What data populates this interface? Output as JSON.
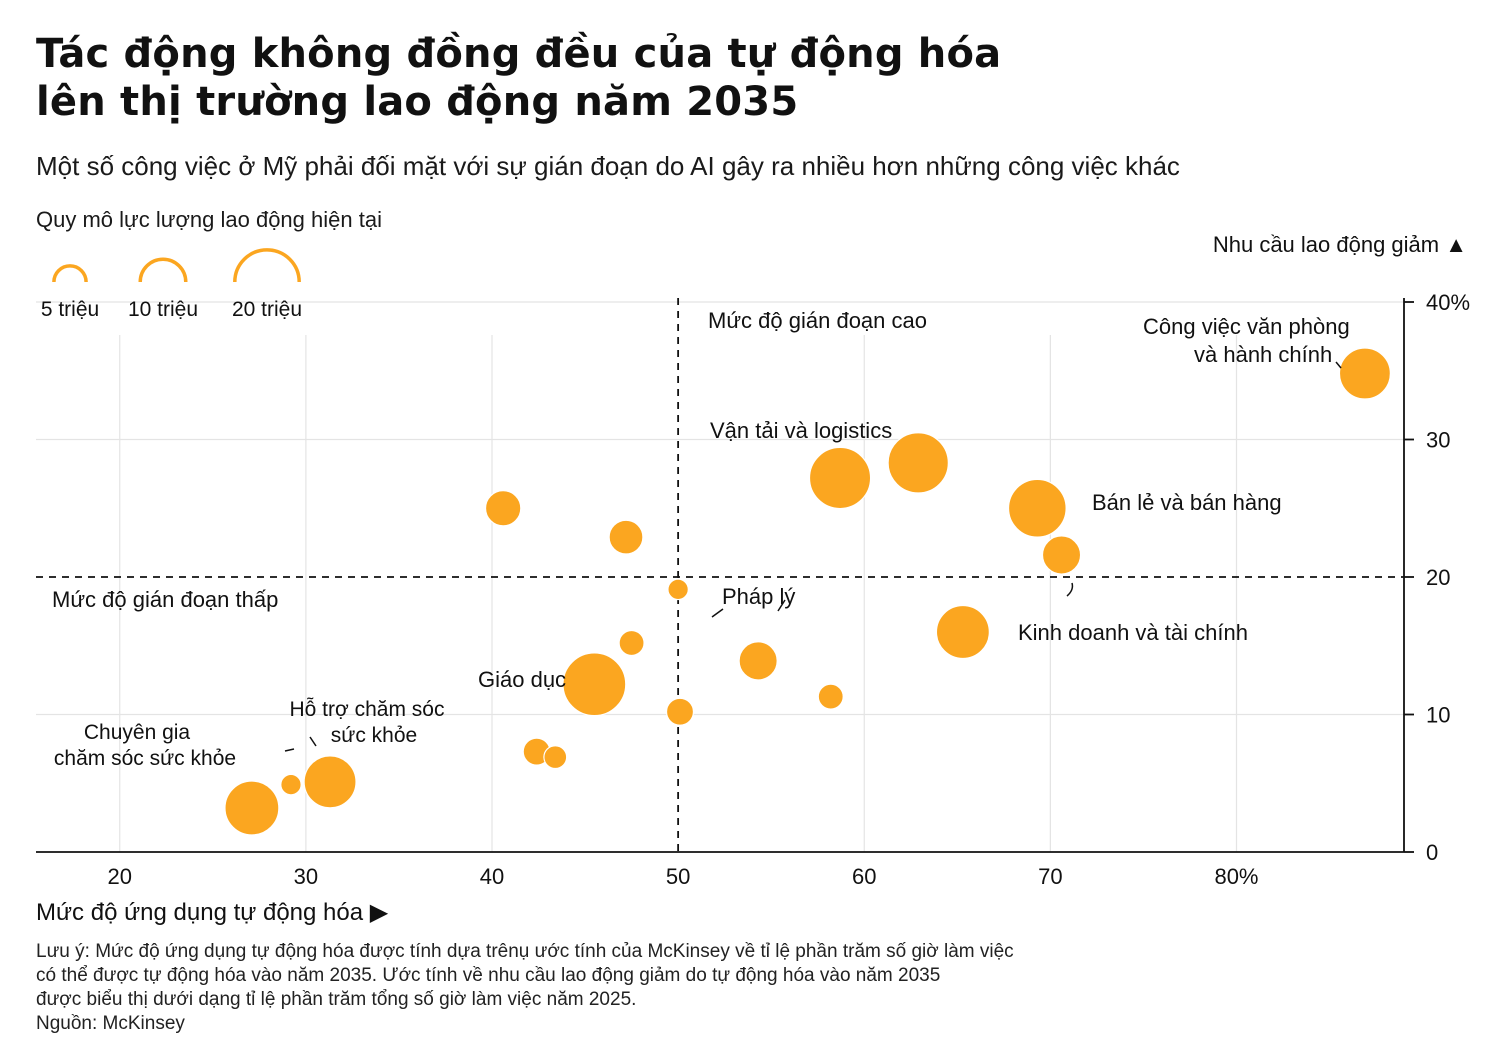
{
  "title_line1": "Tác động không đồng đều của tự động hóa",
  "title_line2": "lên thị trường lao động năm 2035",
  "subtitle": "Một số công việc ở Mỹ phải đối mặt với sự gián đoạn do AI gây ra nhiều hơn những công việc khác",
  "legend": {
    "title": "Quy mô lực lượng lao động hiện tại",
    "items": [
      {
        "label": "5 triệu",
        "value": 5
      },
      {
        "label": "10 triệu",
        "value": 10
      },
      {
        "label": "20 triệu",
        "value": 20
      }
    ]
  },
  "footnote": {
    "line1": "Lưu ý: Mức độ ứng dụng tự động hóa được tính dựa trênụ ước tính của McKinsey về tỉ lệ phần trăm số giờ làm việc",
    "line2": "có thể được tự động hóa vào năm 2035. Ước tính về nhu cầu lao động giảm do tự động hóa vào năm 2035",
    "line3": "được biểu thị dưới dạng tỉ lệ phần trăm tổng số giờ làm việc năm 2025.",
    "source": "Nguồn: McKinsey"
  },
  "colors": {
    "bubble": "#FBA620",
    "text": "#111111",
    "grid": "#e4e4e4"
  },
  "chart_data": {
    "type": "scatter",
    "xlabel": "Mức độ ứng dụng tự động hóa ▶",
    "ylabel": "Nhu cầu lao động giảm ▲",
    "xlim": [
      15.5,
      89
    ],
    "ylim": [
      0,
      40
    ],
    "x_ticks": [
      {
        "value": 20,
        "label": "20"
      },
      {
        "value": 30,
        "label": "30"
      },
      {
        "value": 40,
        "label": "40"
      },
      {
        "value": 50,
        "label": "50"
      },
      {
        "value": 60,
        "label": "60"
      },
      {
        "value": 70,
        "label": "70"
      },
      {
        "value": 80,
        "label": "80%"
      }
    ],
    "y_ticks": [
      {
        "value": 0,
        "label": "0"
      },
      {
        "value": 10,
        "label": "10"
      },
      {
        "value": 20,
        "label": "20"
      },
      {
        "value": 30,
        "label": "30"
      },
      {
        "value": 40,
        "label": "40%"
      }
    ],
    "x_reference": {
      "value": 50,
      "label": "Mức độ gián đoạn cao"
    },
    "y_reference": {
      "value": 20,
      "label": "Mức độ gián đoạn thấp"
    },
    "grid": true,
    "points": [
      {
        "x": 27.1,
        "y": 3.2,
        "size": 14,
        "label": "Chuyên gia chăm sóc sức khỏe"
      },
      {
        "x": 29.2,
        "y": 4.9,
        "size": 2
      },
      {
        "x": 31.3,
        "y": 5.1,
        "size": 13,
        "label": "Hỗ trợ chăm sóc sức khỏe"
      },
      {
        "x": 40.6,
        "y": 25.0,
        "size": 6
      },
      {
        "x": 42.4,
        "y": 7.3,
        "size": 3.5
      },
      {
        "x": 43.4,
        "y": 6.9,
        "size": 2.5
      },
      {
        "x": 45.5,
        "y": 12.2,
        "size": 19,
        "label": "Giáo dục"
      },
      {
        "x": 47.2,
        "y": 22.9,
        "size": 5.5
      },
      {
        "x": 47.5,
        "y": 15.2,
        "size": 3
      },
      {
        "x": 50.0,
        "y": 19.1,
        "size": 2,
        "label": "Pháp lý"
      },
      {
        "x": 50.1,
        "y": 10.2,
        "size": 3.5
      },
      {
        "x": 54.3,
        "y": 13.9,
        "size": 7
      },
      {
        "x": 58.2,
        "y": 11.3,
        "size": 3
      },
      {
        "x": 58.7,
        "y": 27.2,
        "size": 18,
        "label": "Vận tải và logistics"
      },
      {
        "x": 62.9,
        "y": 28.3,
        "size": 17.5
      },
      {
        "x": 65.3,
        "y": 16.0,
        "size": 13.5,
        "label": "Kinh doanh và tài chính"
      },
      {
        "x": 69.3,
        "y": 25.0,
        "size": 16,
        "label": "Bán lẻ và bán hàng"
      },
      {
        "x": 70.6,
        "y": 21.6,
        "size": 7
      },
      {
        "x": 86.9,
        "y": 34.8,
        "size": 12.5,
        "label": "Công việc văn phòng và hành chính"
      }
    ],
    "annotations": {
      "office": [
        "Công việc văn phòng",
        "và hành chính"
      ],
      "transport": "Vận tải và logistics",
      "retail": "Bán lẻ và bán hàng",
      "legal": "Pháp lý",
      "finance": "Kinh doanh và tài chính",
      "education": "Giáo dục",
      "hc_support": [
        "Hỗ trợ chăm sóc",
        "sức khỏe"
      ],
      "hc_prof": [
        "Chuyên gia",
        "chăm sóc sức khỏe"
      ]
    }
  }
}
